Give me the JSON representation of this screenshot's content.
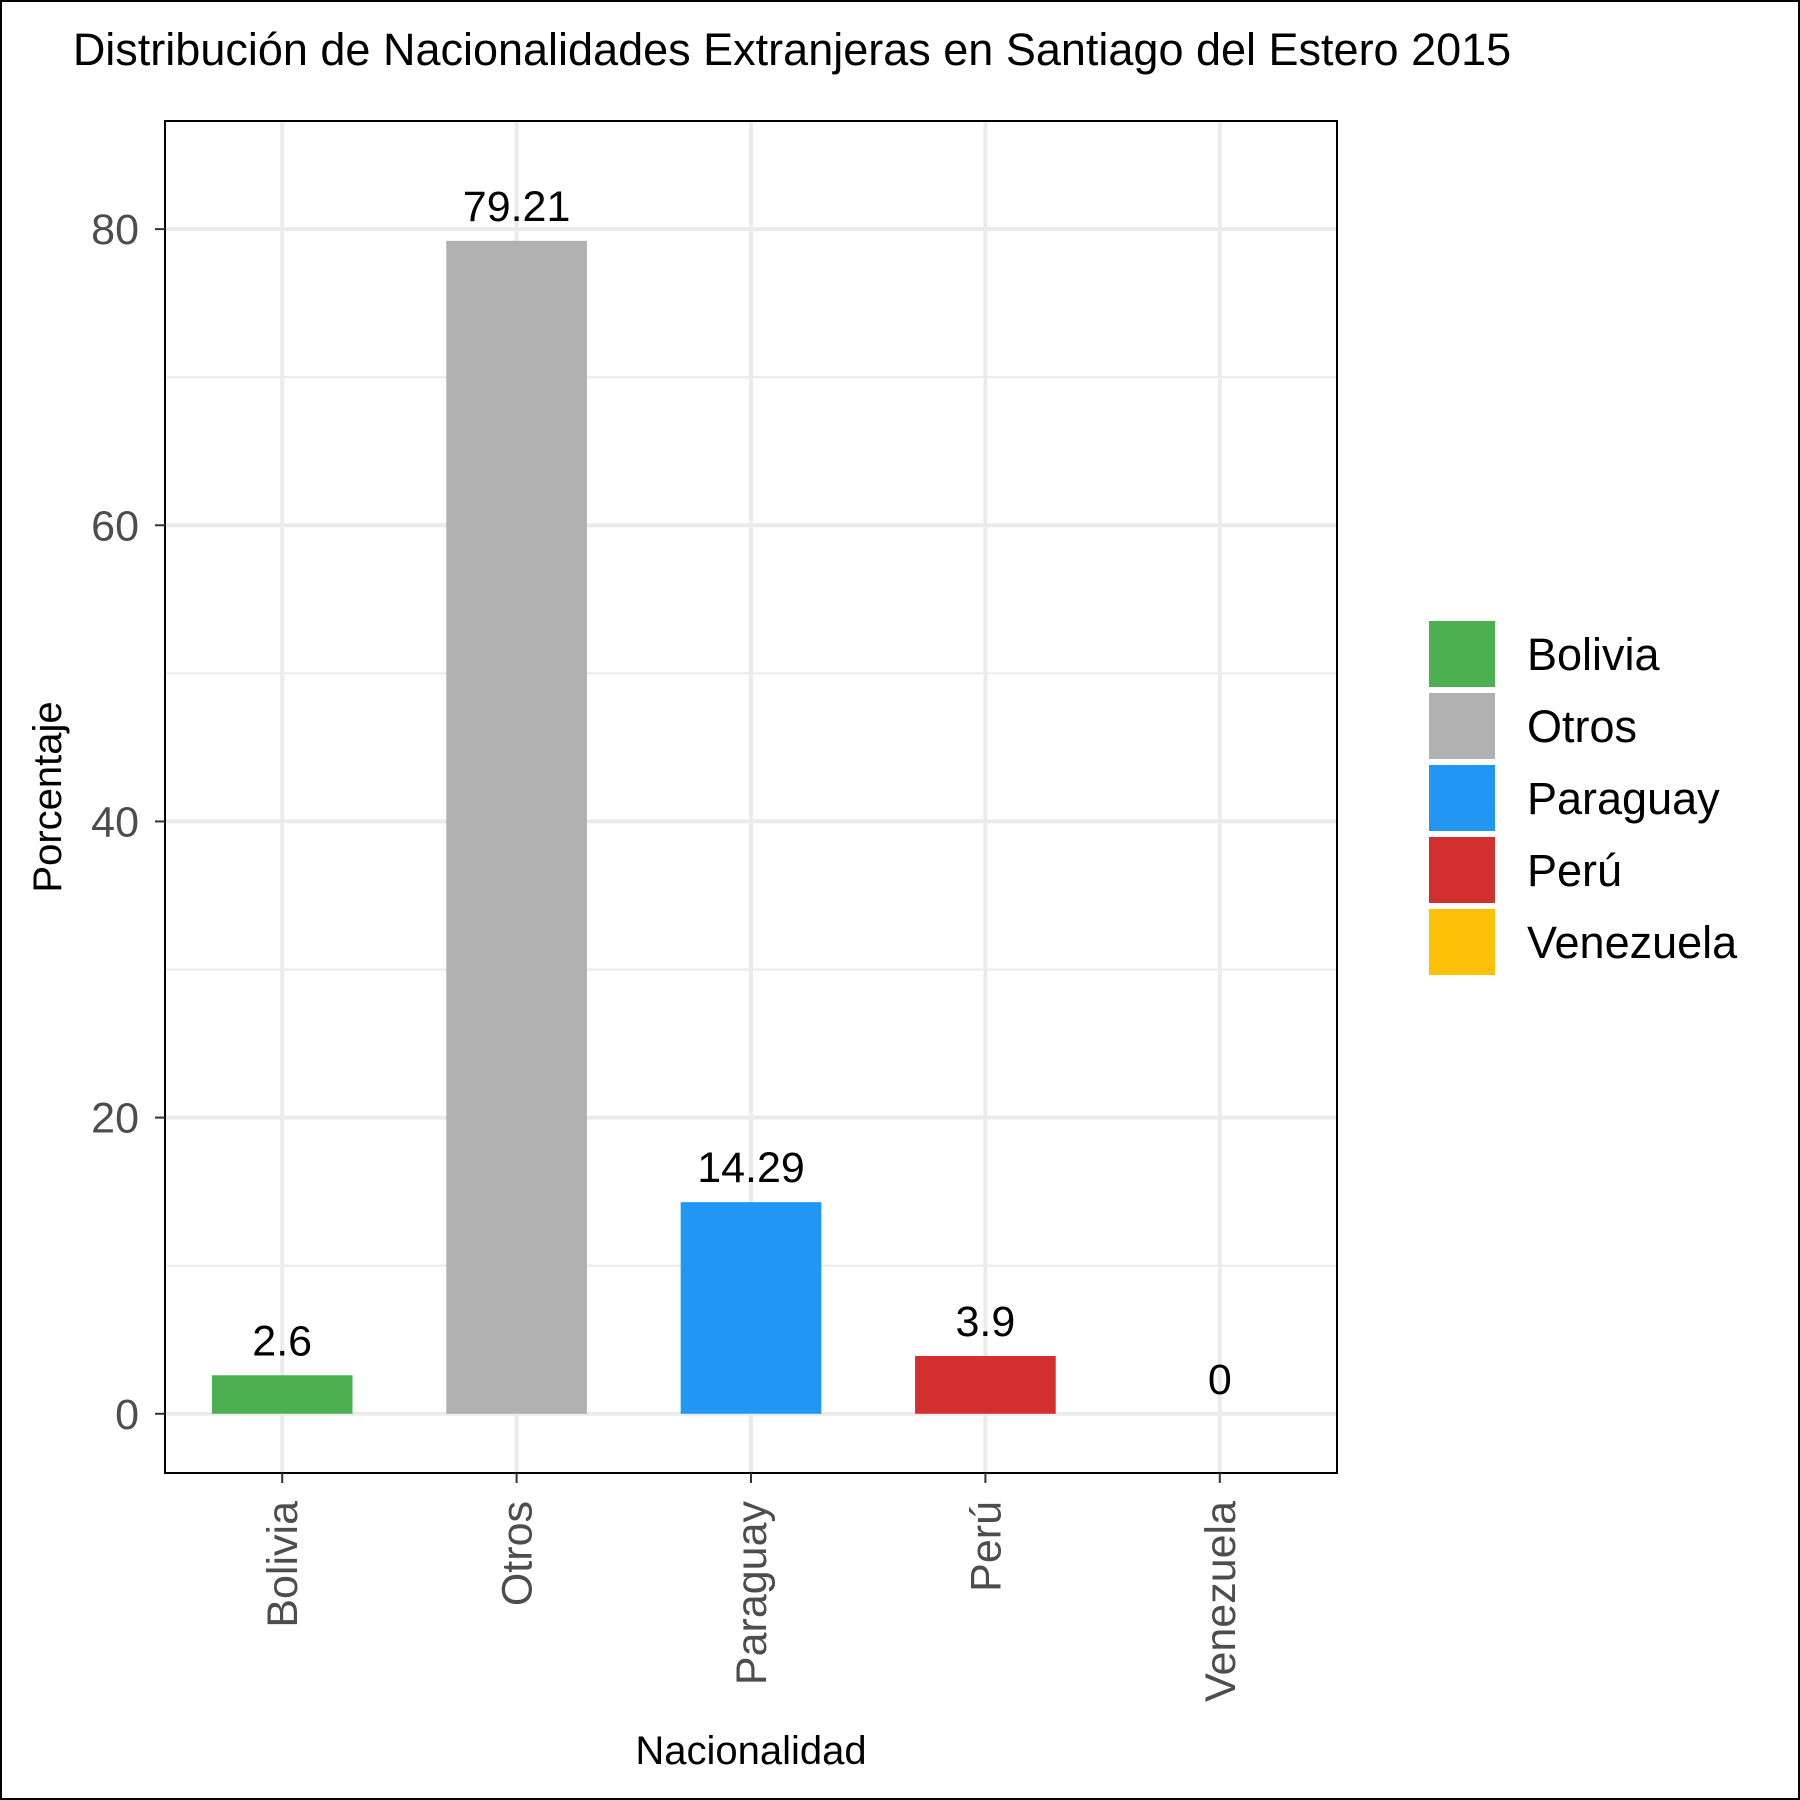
{
  "chart_data": {
    "type": "bar",
    "title": "Distribución de Nacionalidades Extranjeras en Santiago del Estero 2015",
    "xlabel": "Nacionalidad",
    "ylabel": "Porcentaje",
    "categories": [
      "Bolivia",
      "Otros",
      "Paraguay",
      "Perú",
      "Venezuela"
    ],
    "values": [
      2.6,
      79.21,
      14.29,
      3.9,
      0
    ],
    "value_labels": [
      "2.6",
      "79.21",
      "14.29",
      "3.9",
      "0"
    ],
    "colors": [
      "#4caf50",
      "#b0b0b0",
      "#2196f3",
      "#d32f2f",
      "#ffc107"
    ],
    "yticks": [
      0,
      20,
      40,
      60,
      80
    ],
    "ytick_labels": [
      "0",
      "20",
      "40",
      "60",
      "80"
    ],
    "ylim": [
      -4,
      87.3
    ],
    "grid": true,
    "legend": {
      "position": "right",
      "entries": [
        "Bolivia",
        "Otros",
        "Paraguay",
        "Perú",
        "Venezuela"
      ]
    }
  }
}
